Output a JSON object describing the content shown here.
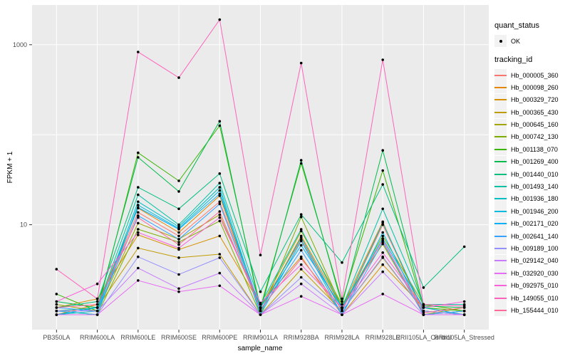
{
  "chart_data": {
    "type": "line",
    "xlabel": "sample_name",
    "ylabel": "FPKM + 1",
    "y_scale": "log10",
    "ylim": [
      1,
      1900
    ],
    "yticks": [
      {
        "value": 10,
        "label": "10"
      },
      {
        "value": 1000,
        "label": "1000"
      }
    ],
    "grid_y_values": [
      10,
      100,
      1000
    ],
    "panel_bg": "#EBEBEB",
    "grid_color": "#FFFFFF",
    "point_color": "#000000",
    "tick_label_color": "#4D4D4D",
    "axis_title_color": "#000000",
    "legend_position": "right",
    "categories": [
      "PB350LA",
      "RRIM600LA",
      "RRIM600LE",
      "RRIM600SE",
      "RRIM600PE",
      "RRIM901LA",
      "RRIM928BA",
      "RRIM928LA",
      "RRIM928LE",
      "RRII105LA_Control",
      "RRII105LA_Stressed"
    ],
    "series": [
      {
        "name": "Hb_000005_360",
        "color": "#F8766D",
        "values": [
          1.1,
          1.2,
          13.7,
          7.5,
          18,
          1.2,
          6.8,
          1.1,
          10.0,
          1.1,
          1.0
        ]
      },
      {
        "name": "Hb_000098_260",
        "color": "#E58700",
        "values": [
          1.0,
          1.3,
          15.3,
          8.2,
          21,
          1.1,
          7.5,
          1.2,
          10.8,
          1.0,
          1.1
        ]
      },
      {
        "name": "Hb_000329_720",
        "color": "#D89000",
        "values": [
          1.2,
          1.5,
          7.7,
          5.3,
          7.5,
          1.3,
          4.4,
          1.0,
          3.6,
          1.2,
          1.0
        ]
      },
      {
        "name": "Hb_000365_430",
        "color": "#C09B00",
        "values": [
          1.0,
          1.2,
          5.5,
          4.3,
          4.7,
          1.0,
          3.2,
          1.1,
          4.3,
          1.1,
          1.0
        ]
      },
      {
        "name": "Hb_000645_160",
        "color": "#A3A500",
        "values": [
          1.3,
          1.1,
          10.4,
          6.9,
          12.9,
          1.2,
          8.5,
          1.3,
          6.1,
          1.0,
          1.2
        ]
      },
      {
        "name": "Hb_000742_130",
        "color": "#7CAE00",
        "values": [
          1.1,
          1.0,
          8.9,
          6.4,
          11.0,
          1.0,
          12.2,
          1.2,
          7.5,
          1.3,
          1.1
        ]
      },
      {
        "name": "Hb_001138_070",
        "color": "#39B600",
        "values": [
          1.7,
          1.1,
          63,
          30.7,
          126,
          1.2,
          48,
          1.4,
          40,
          1.2,
          1.1
        ]
      },
      {
        "name": "Hb_001269_400",
        "color": "#00BB4E",
        "values": [
          1.4,
          1.2,
          56,
          23.4,
          141,
          1.1,
          52,
          1.3,
          67,
          1.25,
          1.2
        ]
      },
      {
        "name": "Hb_001440_010",
        "color": "#00BF7D",
        "values": [
          1.2,
          1.4,
          26,
          15,
          37,
          1.8,
          13,
          3.8,
          28,
          2.0,
          5.7
        ]
      },
      {
        "name": "Hb_001493_140",
        "color": "#00C1A3",
        "values": [
          1.1,
          1.2,
          21.5,
          10.0,
          29,
          1.3,
          8.9,
          1.2,
          15,
          1.3,
          1.3
        ]
      },
      {
        "name": "Hb_001936_180",
        "color": "#00BFC4",
        "values": [
          1.0,
          1.1,
          18,
          9.5,
          26,
          1.1,
          7.2,
          1.1,
          10.5,
          1.1,
          1.0
        ]
      },
      {
        "name": "Hb_001946_200",
        "color": "#00BAE0",
        "values": [
          1.1,
          1.0,
          16.5,
          9.1,
          24,
          1.0,
          6.6,
          1.0,
          8.2,
          1.0,
          1.1
        ]
      },
      {
        "name": "Hb_002171_020",
        "color": "#00B0F6",
        "values": [
          1.0,
          1.2,
          15.5,
          8.9,
          22,
          1.2,
          5.9,
          1.2,
          7.0,
          1.2,
          1.0
        ]
      },
      {
        "name": "Hb_002641_140",
        "color": "#35A2FF",
        "values": [
          1.2,
          1.1,
          12.6,
          6.9,
          17,
          1.1,
          5.2,
          1.0,
          6.4,
          1.0,
          1.1
        ]
      },
      {
        "name": "Hb_009189_100",
        "color": "#9590FF",
        "values": [
          1.0,
          1.0,
          4.4,
          2.8,
          4.3,
          1.0,
          2.6,
          1.1,
          4.4,
          1.1,
          1.0
        ]
      },
      {
        "name": "Hb_029142_040",
        "color": "#C77CFF",
        "values": [
          1.1,
          1.1,
          3.3,
          1.95,
          2.9,
          1.0,
          2.2,
          1.0,
          3.0,
          1.0,
          1.0
        ]
      },
      {
        "name": "Hb_032920_030",
        "color": "#E76BF3",
        "values": [
          1.0,
          1.0,
          2.4,
          1.8,
          2.1,
          1.0,
          1.6,
          1.0,
          1.7,
          1.0,
          1.0
        ]
      },
      {
        "name": "Hb_092975_010",
        "color": "#FA62DB",
        "values": [
          1.4,
          2.2,
          8.2,
          5.5,
          12.0,
          1.35,
          3.6,
          1.2,
          4.9,
          1.2,
          1.4
        ]
      },
      {
        "name": "Hb_149055_010",
        "color": "#FF62BC",
        "values": [
          3.2,
          1.5,
          830,
          430,
          1900,
          4.6,
          625,
          1.5,
          680,
          1.3,
          1.25
        ]
      },
      {
        "name": "Hb_155444_010",
        "color": "#FF6A98",
        "values": [
          1.2,
          1.3,
          12.0,
          6.0,
          14.0,
          1.16,
          4.2,
          1.15,
          6.7,
          1.05,
          1.2
        ]
      }
    ],
    "legend": {
      "quant_status": {
        "title": "quant_status",
        "items": [
          {
            "label": "OK",
            "marker": "point",
            "color": "#000000"
          }
        ]
      },
      "tracking": {
        "title": "tracking_id"
      }
    }
  }
}
